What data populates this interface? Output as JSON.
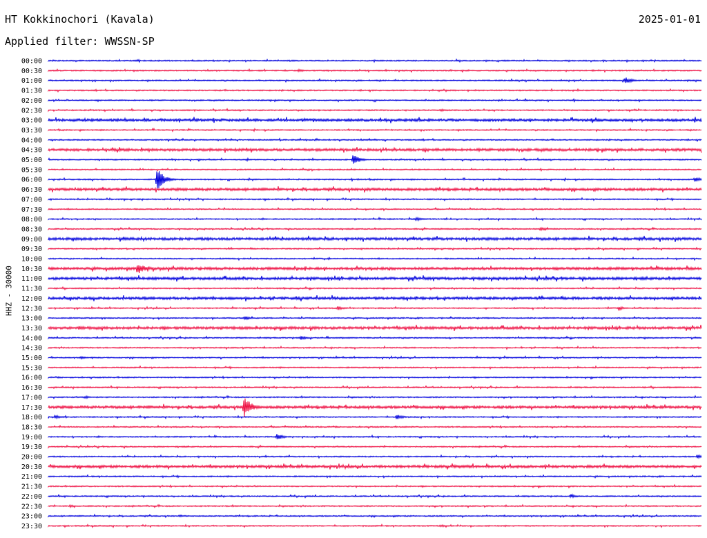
{
  "header": {
    "station": "HT Kokkinochori (Kavala)",
    "date": "2025-01-01",
    "filter": "Applied filter: WWSSN-SP"
  },
  "chart_data": {
    "type": "helicorder",
    "ylabel": "HHZ - 30000",
    "colors": [
      "#0000dd",
      "#ee1144"
    ],
    "row_labels": [
      "00:00",
      "00:30",
      "01:00",
      "01:30",
      "02:00",
      "02:30",
      "03:00",
      "03:30",
      "04:00",
      "04:30",
      "05:00",
      "05:30",
      "06:00",
      "06:30",
      "07:00",
      "07:30",
      "08:00",
      "08:30",
      "09:00",
      "09:30",
      "10:00",
      "10:30",
      "11:00",
      "11:30",
      "12:00",
      "12:30",
      "13:00",
      "13:30",
      "14:00",
      "14:30",
      "15:00",
      "15:30",
      "16:00",
      "16:30",
      "17:00",
      "17:30",
      "18:00",
      "18:30",
      "19:00",
      "19:30",
      "20:00",
      "20:30",
      "21:00",
      "21:30",
      "22:00",
      "22:30",
      "23:00",
      "23:30"
    ],
    "events": [
      {
        "row": "00:30",
        "minute": 11.5,
        "amplitude": 2
      },
      {
        "row": "01:00",
        "minute": 26.5,
        "amplitude": 5
      },
      {
        "row": "02:30",
        "minute": 18.0,
        "amplitude": 2
      },
      {
        "row": "05:00",
        "minute": 14.0,
        "amplitude": 8
      },
      {
        "row": "06:00",
        "minute": 5.0,
        "amplitude": 18
      },
      {
        "row": "06:00",
        "minute": 29.7,
        "amplitude": 4
      },
      {
        "row": "08:00",
        "minute": 16.9,
        "amplitude": 3
      },
      {
        "row": "08:30",
        "minute": 22.6,
        "amplitude": 3
      },
      {
        "row": "10:30",
        "minute": 4.1,
        "amplitude": 10
      },
      {
        "row": "10:30",
        "minute": 23.3,
        "amplitude": 3
      },
      {
        "row": "12:30",
        "minute": 13.3,
        "amplitude": 3
      },
      {
        "row": "12:30",
        "minute": 26.2,
        "amplitude": 3
      },
      {
        "row": "13:00",
        "minute": 9.0,
        "amplitude": 3
      },
      {
        "row": "13:30",
        "minute": 1.4,
        "amplitude": 3
      },
      {
        "row": "14:00",
        "minute": 11.6,
        "amplitude": 3
      },
      {
        "row": "15:00",
        "minute": 1.5,
        "amplitude": 2
      },
      {
        "row": "17:00",
        "minute": 1.7,
        "amplitude": 2
      },
      {
        "row": "17:30",
        "minute": 9.0,
        "amplitude": 18
      },
      {
        "row": "18:00",
        "minute": 0.3,
        "amplitude": 3
      },
      {
        "row": "18:00",
        "minute": 16.0,
        "amplitude": 4
      },
      {
        "row": "19:00",
        "minute": 10.5,
        "amplitude": 5
      },
      {
        "row": "20:00",
        "minute": 29.8,
        "amplitude": 3
      },
      {
        "row": "22:00",
        "minute": 24.0,
        "amplitude": 3
      },
      {
        "row": "22:30",
        "minute": 1.0,
        "amplitude": 2
      },
      {
        "row": "23:00",
        "minute": 6.0,
        "amplitude": 2
      },
      {
        "row": "23:30",
        "minute": 18.0,
        "amplitude": 2
      }
    ],
    "noisy_rows": [
      "03:00",
      "04:30",
      "06:30",
      "09:00",
      "10:30",
      "11:00",
      "12:00",
      "13:30",
      "17:30",
      "20:30"
    ],
    "grid": false
  }
}
